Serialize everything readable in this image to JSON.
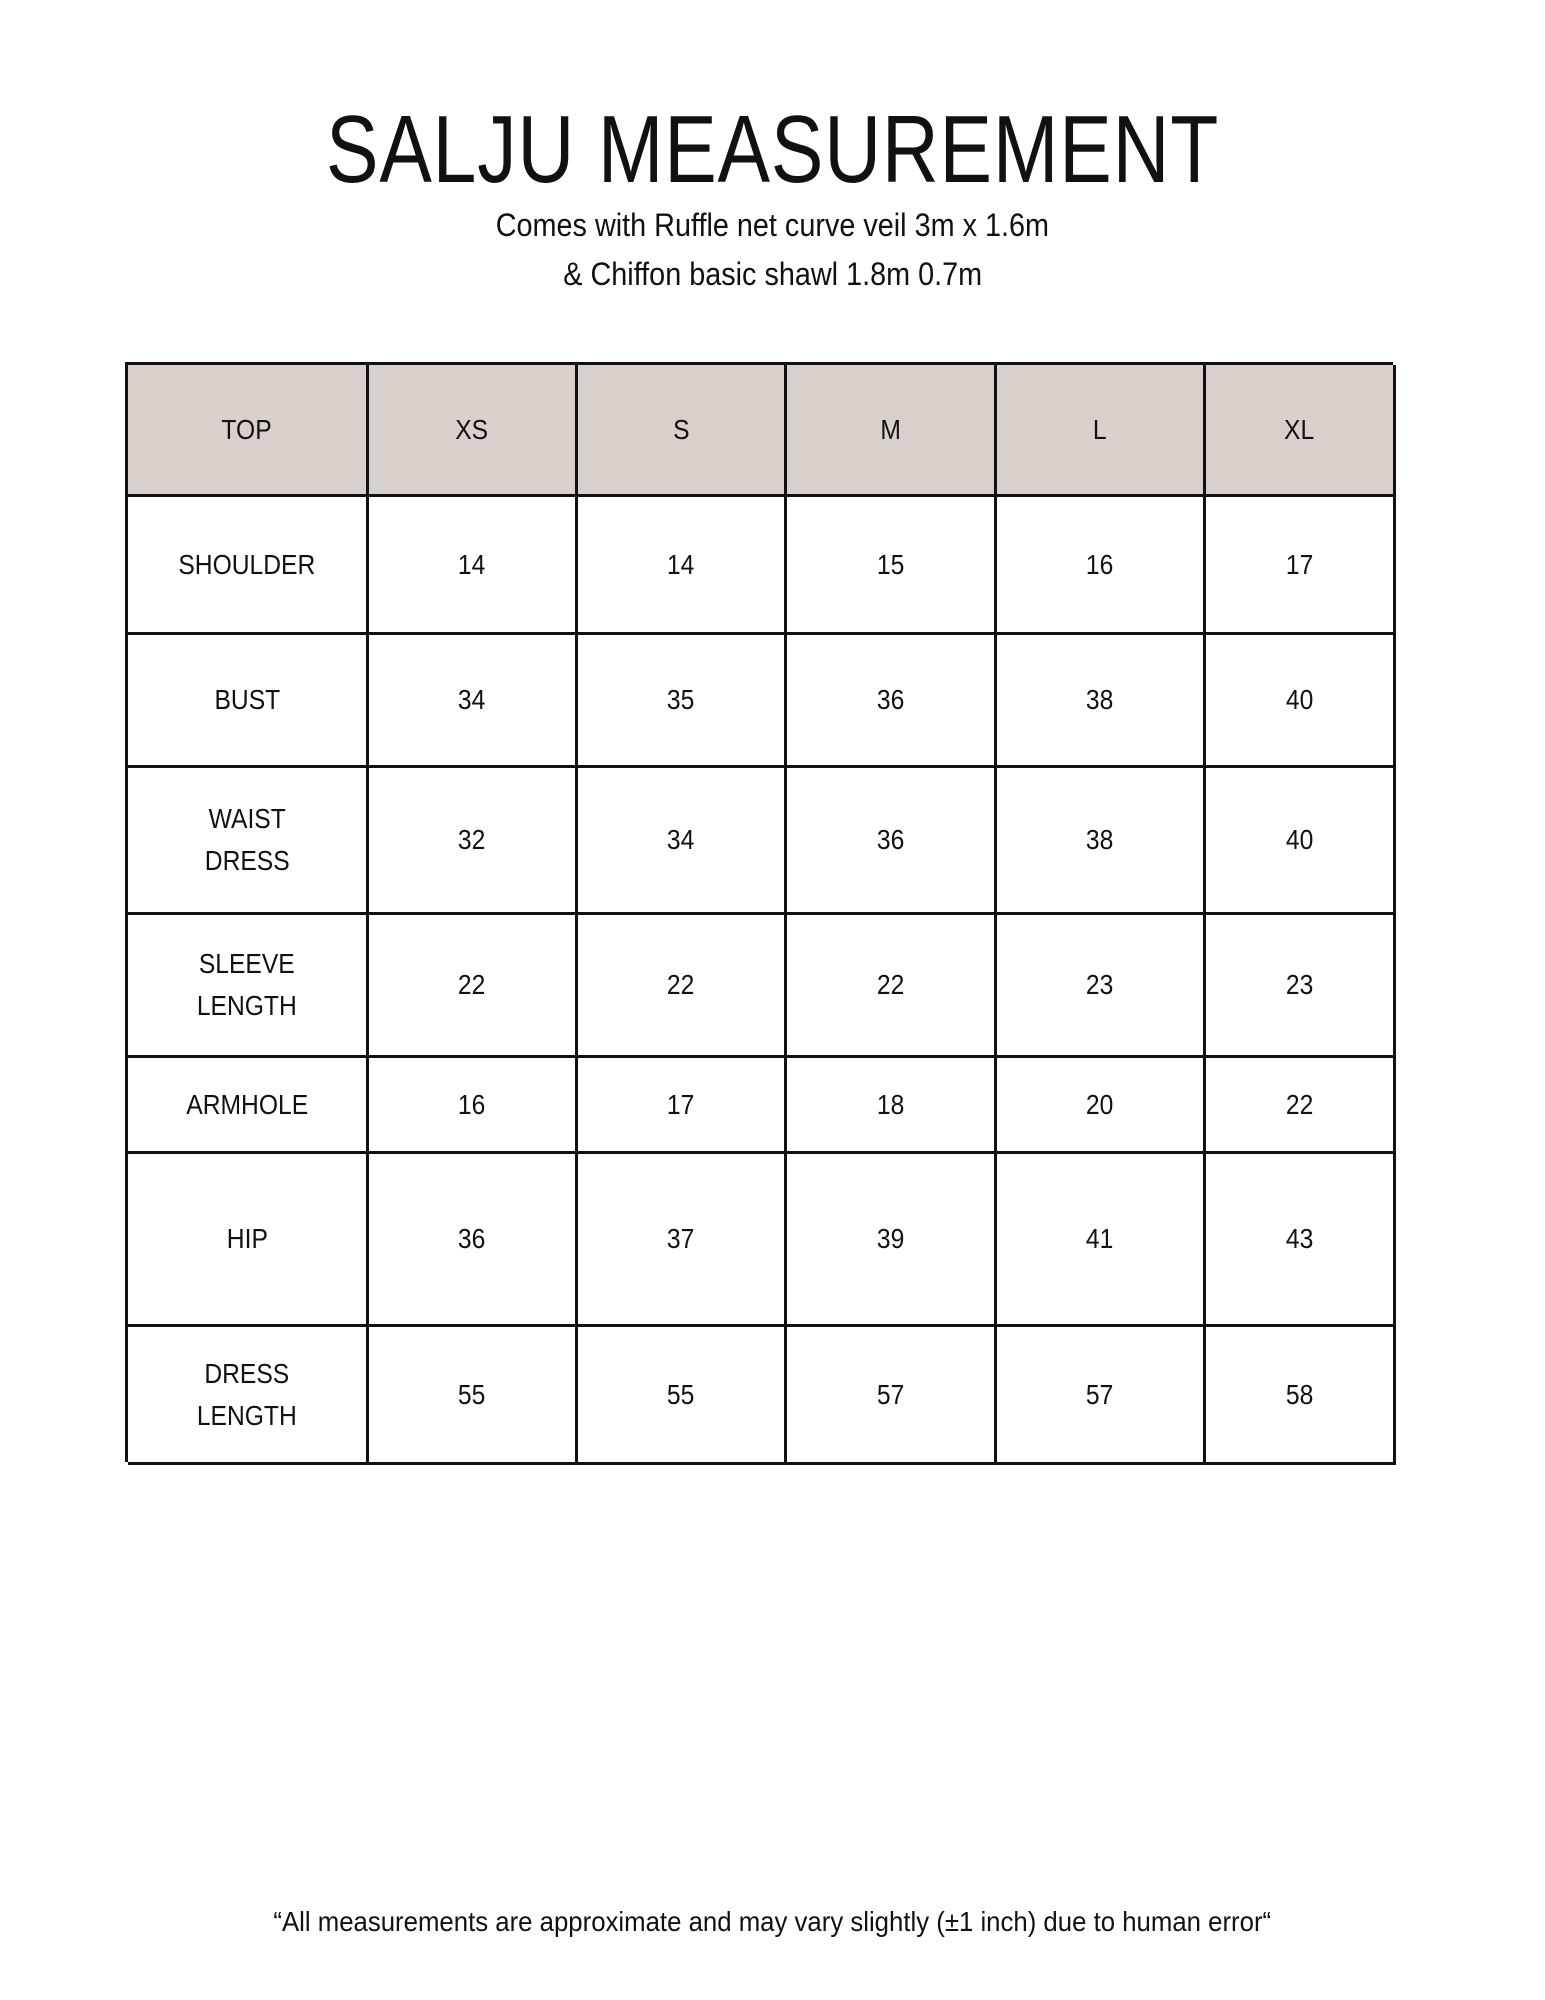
{
  "title": "SALJU MEASUREMENT",
  "subtitle": [
    "Comes with Ruffle net curve veil 3m x 1.6m",
    "& Chiffon basic shawl 1.8m 0.7m"
  ],
  "colors": {
    "header_bg": "#d8d0cb",
    "border": "#111111"
  },
  "table": {
    "headers": [
      "TOP",
      "XS",
      "S",
      "M",
      "L",
      "XL"
    ],
    "rows": [
      [
        "SHOULDER",
        "14",
        "14",
        "15",
        "16",
        "17"
      ],
      [
        "BUST",
        "34",
        "35",
        "36",
        "38",
        "40"
      ],
      [
        "WAIST\nDRESS",
        "32",
        "34",
        "36",
        "38",
        "40"
      ],
      [
        "SLEEVE\nLENGTH",
        "22",
        "22",
        "22",
        "23",
        "23"
      ],
      [
        "ARMHOLE",
        "16",
        "17",
        "18",
        "20",
        "22"
      ],
      [
        "HIP",
        "36",
        "37",
        "39",
        "41",
        "43"
      ],
      [
        "DRESS\nLENGTH",
        "55",
        "55",
        "57",
        "57",
        "58"
      ]
    ]
  },
  "footer": "“All measurements are approximate and may vary slightly (±1 inch) due to human error“"
}
